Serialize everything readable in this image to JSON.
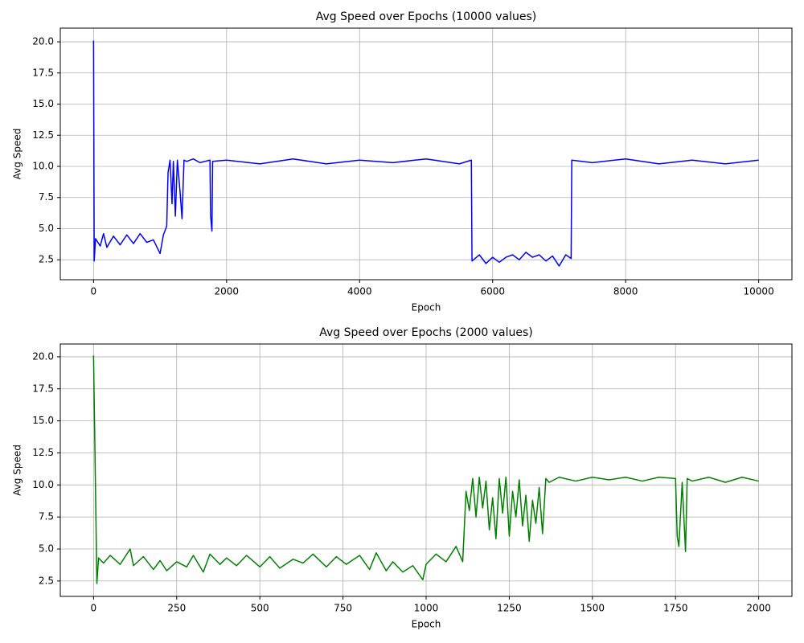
{
  "chart_data": [
    {
      "type": "line",
      "title": "Avg Speed over Epochs (10000 values)",
      "xlabel": "Epoch",
      "ylabel": "Avg Speed",
      "grid": true,
      "xlim": [
        -500,
        10500
      ],
      "ylim": [
        0.9,
        21.1
      ],
      "xticks": [
        0,
        2000,
        4000,
        6000,
        8000,
        10000
      ],
      "yticks": [
        2.5,
        {
          "value": 5,
          "label": "5.0"
        },
        7.5,
        {
          "value": 10,
          "label": "10.0"
        },
        12.5,
        {
          "value": 15,
          "label": "15.0"
        },
        17.5,
        {
          "value": 20,
          "label": "20.0"
        }
      ],
      "series": [
        {
          "name": "Avg Speed",
          "color": "#0000ff",
          "x": [
            0,
            10,
            30,
            100,
            150,
            200,
            300,
            400,
            500,
            600,
            700,
            800,
            900,
            1000,
            1050,
            1100,
            1120,
            1150,
            1180,
            1200,
            1230,
            1260,
            1300,
            1330,
            1360,
            1400,
            1500,
            1600,
            1750,
            1760,
            1780,
            1790,
            2000,
            2500,
            3000,
            3500,
            4000,
            4500,
            5000,
            5500,
            5680,
            5690,
            5800,
            5900,
            6000,
            6100,
            6200,
            6300,
            6400,
            6500,
            6600,
            6700,
            6800,
            6900,
            7000,
            7100,
            7180,
            7190,
            7500,
            8000,
            8500,
            9000,
            9500,
            10000
          ],
          "values": [
            20.1,
            2.4,
            4.2,
            3.6,
            4.6,
            3.5,
            4.4,
            3.7,
            4.5,
            3.8,
            4.6,
            3.9,
            4.1,
            3.0,
            4.5,
            5.2,
            9.5,
            10.5,
            7.0,
            10.4,
            6.0,
            10.5,
            8.0,
            5.8,
            10.5,
            10.4,
            10.6,
            10.3,
            10.5,
            6.0,
            4.8,
            10.4,
            10.5,
            10.2,
            10.6,
            10.2,
            10.5,
            10.3,
            10.6,
            10.2,
            10.5,
            2.4,
            2.9,
            2.2,
            2.7,
            2.3,
            2.7,
            2.9,
            2.5,
            3.1,
            2.7,
            2.9,
            2.4,
            2.8,
            2.0,
            2.9,
            2.6,
            10.5,
            10.3,
            10.6,
            10.2,
            10.5,
            10.2,
            10.5
          ]
        }
      ]
    },
    {
      "type": "line",
      "title": "Avg Speed over Epochs (2000 values)",
      "xlabel": "Epoch",
      "ylabel": "Avg Speed",
      "grid": true,
      "xlim": [
        -100,
        2100
      ],
      "ylim": [
        1.3,
        21.0
      ],
      "xticks": [
        0,
        250,
        500,
        750,
        1000,
        1250,
        1500,
        1750,
        2000
      ],
      "yticks": [
        2.5,
        {
          "value": 5,
          "label": "5.0"
        },
        7.5,
        {
          "value": 10,
          "label": "10.0"
        },
        12.5,
        {
          "value": 15,
          "label": "15.0"
        },
        17.5,
        {
          "value": 20,
          "label": "20.0"
        }
      ],
      "series": [
        {
          "name": "Avg Speed",
          "color": "#008000",
          "x": [
            0,
            10,
            15,
            30,
            50,
            80,
            110,
            120,
            150,
            180,
            200,
            220,
            250,
            280,
            300,
            330,
            350,
            380,
            400,
            430,
            460,
            500,
            530,
            560,
            600,
            630,
            660,
            700,
            730,
            760,
            800,
            830,
            850,
            880,
            900,
            930,
            960,
            990,
            1000,
            1030,
            1060,
            1090,
            1110,
            1120,
            1130,
            1140,
            1150,
            1160,
            1170,
            1180,
            1190,
            1200,
            1210,
            1220,
            1230,
            1240,
            1250,
            1260,
            1270,
            1280,
            1290,
            1300,
            1310,
            1320,
            1330,
            1340,
            1350,
            1360,
            1370,
            1400,
            1450,
            1500,
            1550,
            1600,
            1650,
            1700,
            1750,
            1755,
            1760,
            1770,
            1780,
            1785,
            1800,
            1850,
            1900,
            1950,
            2000
          ],
          "values": [
            20.1,
            2.3,
            4.3,
            3.9,
            4.5,
            3.8,
            5.0,
            3.7,
            4.4,
            3.4,
            4.1,
            3.3,
            4.0,
            3.6,
            4.5,
            3.2,
            4.6,
            3.8,
            4.3,
            3.7,
            4.5,
            3.6,
            4.4,
            3.5,
            4.2,
            3.9,
            4.6,
            3.6,
            4.4,
            3.8,
            4.5,
            3.4,
            4.7,
            3.3,
            4.0,
            3.2,
            3.7,
            2.6,
            3.8,
            4.6,
            4.0,
            5.2,
            4.0,
            9.5,
            8.0,
            10.5,
            7.5,
            10.6,
            8.2,
            10.3,
            6.5,
            9.0,
            5.8,
            10.5,
            7.8,
            10.6,
            6.0,
            9.5,
            7.5,
            10.4,
            6.8,
            9.2,
            5.6,
            8.8,
            7.0,
            9.8,
            6.2,
            10.5,
            10.2,
            10.6,
            10.3,
            10.6,
            10.4,
            10.6,
            10.3,
            10.6,
            10.5,
            6.0,
            5.2,
            10.2,
            4.8,
            10.5,
            10.3,
            10.6,
            10.2,
            10.6,
            10.3
          ]
        }
      ]
    }
  ]
}
